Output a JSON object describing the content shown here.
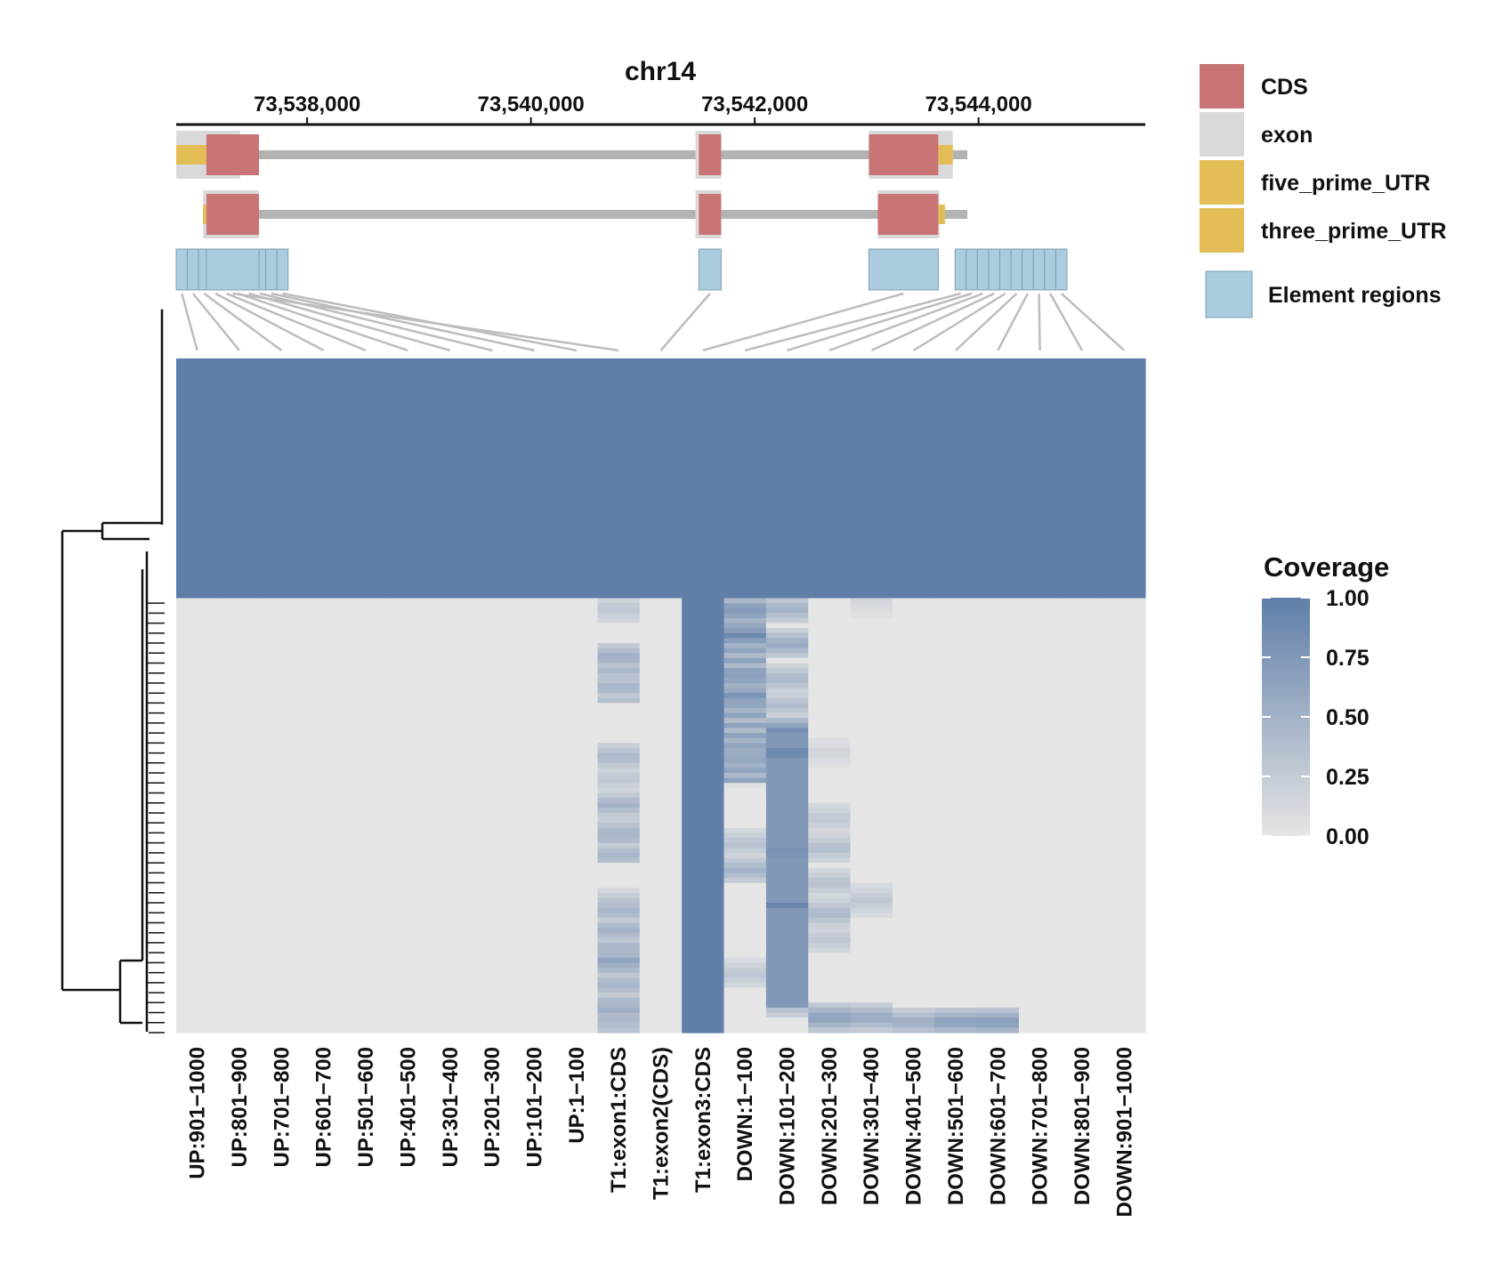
{
  "chart_data": {
    "type": "heatmap",
    "title": "chr14",
    "genome_axis": {
      "ticks": [
        "73,538,000",
        "73,540,000",
        "73,542,000",
        "73,544,000"
      ],
      "tick_values": [
        73538000,
        73540000,
        73542000,
        73544000
      ],
      "range": [
        73536830,
        73545490
      ]
    },
    "transcripts": [
      {
        "intron_span": [
          73537400,
          73543900
        ],
        "exon": [
          [
            73536830,
            73537400
          ],
          [
            73541470,
            73541700
          ],
          [
            73543020,
            73543770
          ]
        ],
        "cds": [
          [
            73537100,
            73537570
          ],
          [
            73541500,
            73541700
          ],
          [
            73543020,
            73543640
          ]
        ],
        "five_prime_utr": [
          [
            73536830,
            73537100
          ]
        ],
        "three_prime_utr": [
          [
            73543640,
            73543770
          ]
        ]
      },
      {
        "intron_span": [
          73537400,
          73543900
        ],
        "exon": [
          [
            73537070,
            73537570
          ],
          [
            73541470,
            73541700
          ],
          [
            73543100,
            73543650
          ]
        ],
        "cds": [
          [
            73537100,
            73537570
          ],
          [
            73541500,
            73541700
          ],
          [
            73543100,
            73543640
          ]
        ],
        "five_prime_utr": [
          [
            73537070,
            73537100
          ]
        ],
        "three_prime_utr": [
          [
            73543640,
            73543700
          ]
        ]
      }
    ],
    "element_regions": [
      [
        73536830,
        73537830,
        10
      ],
      [
        73537100,
        73537570,
        1
      ],
      [
        73541500,
        73541700,
        1
      ],
      [
        73543020,
        73543640,
        1
      ],
      [
        73543790,
        73544790,
        10
      ]
    ],
    "columns": [
      "UP:901−1000",
      "UP:801−900",
      "UP:701−800",
      "UP:601−700",
      "UP:501−600",
      "UP:401−500",
      "UP:301−400",
      "UP:201−300",
      "UP:101−200",
      "UP:1−100",
      "T1:exon1:CDS",
      "T1:exon2(CDS)",
      "T1:exon3:CDS",
      "DOWN:1−100",
      "DOWN:101−200",
      "DOWN:201−300",
      "DOWN:301−400",
      "DOWN:401−500",
      "DOWN:501−600",
      "DOWN:601−700",
      "DOWN:701−800",
      "DOWN:801−900",
      "DOWN:901−1000"
    ],
    "row_count": 135,
    "row_values": {
      "top_block_rows": 48,
      "high_column": "T1:exon3:CDS",
      "exon1_cds_bands": [
        [
          0.02,
          0.3
        ],
        [
          0.13,
          0.55
        ],
        [
          0.19,
          0.2
        ],
        [
          0.36,
          0.45
        ],
        [
          0.41,
          0.3
        ],
        [
          0.47,
          0.5
        ],
        [
          0.53,
          0.45
        ],
        [
          0.56,
          0.1
        ],
        [
          0.7,
          0.4
        ],
        [
          0.76,
          0.5
        ],
        [
          0.83,
          0.65
        ],
        [
          0.88,
          0.45
        ],
        [
          0.94,
          0.55
        ],
        [
          0.98,
          0.4
        ]
      ],
      "down_1_100_bands": [
        [
          0.02,
          0.75
        ],
        [
          0.08,
          0.9
        ],
        [
          0.17,
          0.7
        ],
        [
          0.22,
          0.8
        ],
        [
          0.29,
          0.45
        ],
        [
          0.34,
          0.6
        ],
        [
          0.4,
          0.1
        ],
        [
          0.56,
          0.35
        ],
        [
          0.62,
          0.5
        ],
        [
          0.86,
          0.3
        ]
      ],
      "down_101_200_bands": [
        [
          0.02,
          0.5
        ],
        [
          0.1,
          0.6
        ],
        [
          0.18,
          0.45
        ],
        [
          0.24,
          0.4
        ],
        [
          0.3,
          0.85
        ],
        [
          0.35,
          1.0
        ],
        [
          0.5,
          0.8
        ],
        [
          0.58,
          0.9
        ],
        [
          0.7,
          0.95
        ],
        [
          0.78,
          0.7
        ],
        [
          0.88,
          0.6
        ],
        [
          0.93,
          0.45
        ]
      ],
      "down_201_300_bands": [
        [
          0.35,
          0.15
        ],
        [
          0.5,
          0.3
        ],
        [
          0.57,
          0.4
        ],
        [
          0.65,
          0.35
        ],
        [
          0.72,
          0.45
        ],
        [
          0.78,
          0.3
        ],
        [
          0.96,
          0.7
        ]
      ],
      "down_301_400_bands": [
        [
          0.0,
          0.15
        ],
        [
          0.69,
          0.3
        ],
        [
          0.96,
          0.6
        ]
      ],
      "down_401_500_bands": [
        [
          0.97,
          0.55
        ]
      ],
      "down_501_600_bands": [
        [
          0.97,
          0.7
        ]
      ],
      "down_601_700_bands": [
        [
          0.97,
          0.75
        ]
      ]
    },
    "legend": {
      "features": [
        {
          "label": "CDS",
          "color": "#c87475"
        },
        {
          "label": "exon",
          "color": "#d9d9d9"
        },
        {
          "label": "five_prime_UTR",
          "color": "#e3bd55"
        },
        {
          "label": "three_prime_UTR",
          "color": "#e3bd55"
        },
        {
          "label": "Element regions",
          "color": "#abcbdf"
        }
      ],
      "coverage_title": "Coverage",
      "coverage_ticks": [
        "1.00",
        "0.75",
        "0.50",
        "0.25",
        "0.00"
      ],
      "coverage_tick_values": [
        1.0,
        0.75,
        0.5,
        0.25,
        0.0
      ],
      "low_color": "#e5e5e5",
      "high_color": "#5f7ea8"
    }
  }
}
